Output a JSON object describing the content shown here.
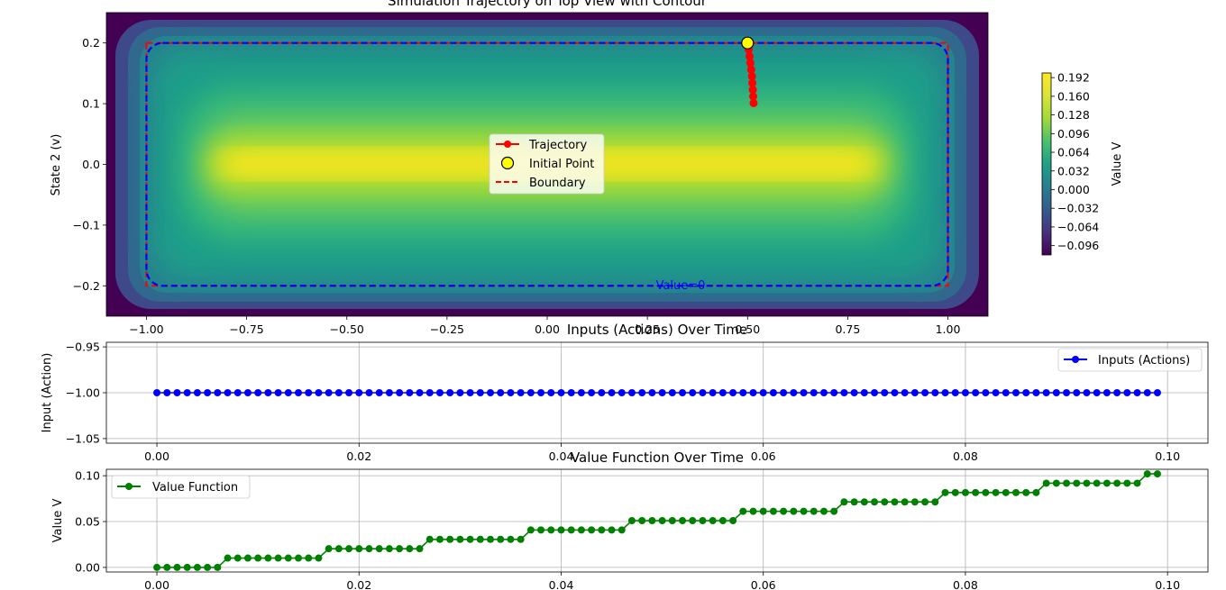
{
  "chart_data": [
    {
      "type": "heatmap",
      "title": "Simulation Trajectory on Top View with Contour",
      "xlabel": "",
      "ylabel": "State 2 (v)",
      "xlim": [
        -1.1,
        1.1
      ],
      "ylim": [
        -0.25,
        0.25
      ],
      "xticks": [
        "−1.00",
        "−0.75",
        "−0.50",
        "−0.25",
        "0.00",
        "0.25",
        "0.50",
        "0.75",
        "1.00"
      ],
      "yticks": [
        "−0.2",
        "−0.1",
        "0.0",
        "0.1",
        "0.2"
      ],
      "colorbar": {
        "label": "Value V",
        "range": [
          -0.112,
          0.2
        ],
        "ticks": [
          "0.192",
          "0.160",
          "0.128",
          "0.096",
          "0.064",
          "0.032",
          "0.000",
          "−0.032",
          "−0.064",
          "−0.096"
        ],
        "colormap": "viridis"
      },
      "boundary": {
        "x": [
          -1.0,
          1.0
        ],
        "y": [
          -0.2,
          0.2
        ],
        "color": "#ff0000"
      },
      "zero_contour_label": "Value=0",
      "trajectory": {
        "x": [
          0.5,
          0.503,
          0.505,
          0.507,
          0.509,
          0.511,
          0.512,
          0.513,
          0.514,
          0.515
        ],
        "y": [
          0.2,
          0.189,
          0.178,
          0.167,
          0.156,
          0.145,
          0.134,
          0.123,
          0.112,
          0.101
        ],
        "color": "#ff0000"
      },
      "initial_point": {
        "x": 0.5,
        "y": 0.2,
        "color": "#ffff00"
      },
      "legend": {
        "placement": "center",
        "items": [
          {
            "label": "Trajectory",
            "style": "line-marker",
            "color": "#ff0000"
          },
          {
            "label": "Initial Point",
            "style": "marker",
            "color": "#ffff00"
          },
          {
            "label": "Boundary",
            "style": "dashed",
            "color": "#ff0000"
          }
        ]
      }
    },
    {
      "type": "line",
      "title": "Inputs (Actions) Over Time",
      "xlabel": "",
      "ylabel": "Input (Action)",
      "xlim": [
        -0.005,
        0.104
      ],
      "ylim": [
        -1.055,
        -0.945
      ],
      "xticks": [
        "0.00",
        "0.02",
        "0.04",
        "0.06",
        "0.08",
        "0.10"
      ],
      "yticks": [
        "−0.95",
        "−1.00",
        "−1.05"
      ],
      "grid": true,
      "series": [
        {
          "name": "Inputs (Actions)",
          "color": "#0000ff",
          "x_start": 0.0,
          "x_step": 0.001,
          "count": 100,
          "value": -1.0
        }
      ],
      "legend": {
        "placement": "top-right"
      }
    },
    {
      "type": "line",
      "title": "Value Function Over Time",
      "xlabel": "",
      "ylabel": "Value V",
      "xlim": [
        -0.005,
        0.104
      ],
      "ylim": [
        -0.005,
        0.107
      ],
      "xticks": [
        "0.00",
        "0.02",
        "0.04",
        "0.06",
        "0.08",
        "0.10"
      ],
      "yticks": [
        "0.10",
        "0.05",
        "0.00"
      ],
      "grid": true,
      "series": [
        {
          "name": "Value Function",
          "color": "#008000",
          "x_start": 0.0,
          "x_step": 0.001,
          "values": [
            0,
            0,
            0,
            0,
            0,
            0,
            0,
            0.0102,
            0.0102,
            0.0102,
            0.0102,
            0.0102,
            0.0102,
            0.0102,
            0.0102,
            0.0102,
            0.0102,
            0.0204,
            0.0204,
            0.0204,
            0.0204,
            0.0204,
            0.0204,
            0.0204,
            0.0204,
            0.0204,
            0.0204,
            0.0306,
            0.0306,
            0.0306,
            0.0306,
            0.0306,
            0.0306,
            0.0306,
            0.0306,
            0.0306,
            0.0306,
            0.0408,
            0.0408,
            0.0408,
            0.0408,
            0.0408,
            0.0408,
            0.0408,
            0.0408,
            0.0408,
            0.0408,
            0.051,
            0.051,
            0.051,
            0.051,
            0.051,
            0.051,
            0.051,
            0.051,
            0.051,
            0.051,
            0.051,
            0.0612,
            0.0612,
            0.0612,
            0.0612,
            0.0612,
            0.0612,
            0.0612,
            0.0612,
            0.0612,
            0.0612,
            0.0714,
            0.0714,
            0.0714,
            0.0714,
            0.0714,
            0.0714,
            0.0714,
            0.0714,
            0.0714,
            0.0714,
            0.0816,
            0.0816,
            0.0816,
            0.0816,
            0.0816,
            0.0816,
            0.0816,
            0.0816,
            0.0816,
            0.0816,
            0.0918,
            0.0918,
            0.0918,
            0.0918,
            0.0918,
            0.0918,
            0.0918,
            0.0918,
            0.0918,
            0.0918,
            0.102,
            0.102
          ]
        }
      ],
      "legend": {
        "placement": "top-left"
      }
    }
  ]
}
